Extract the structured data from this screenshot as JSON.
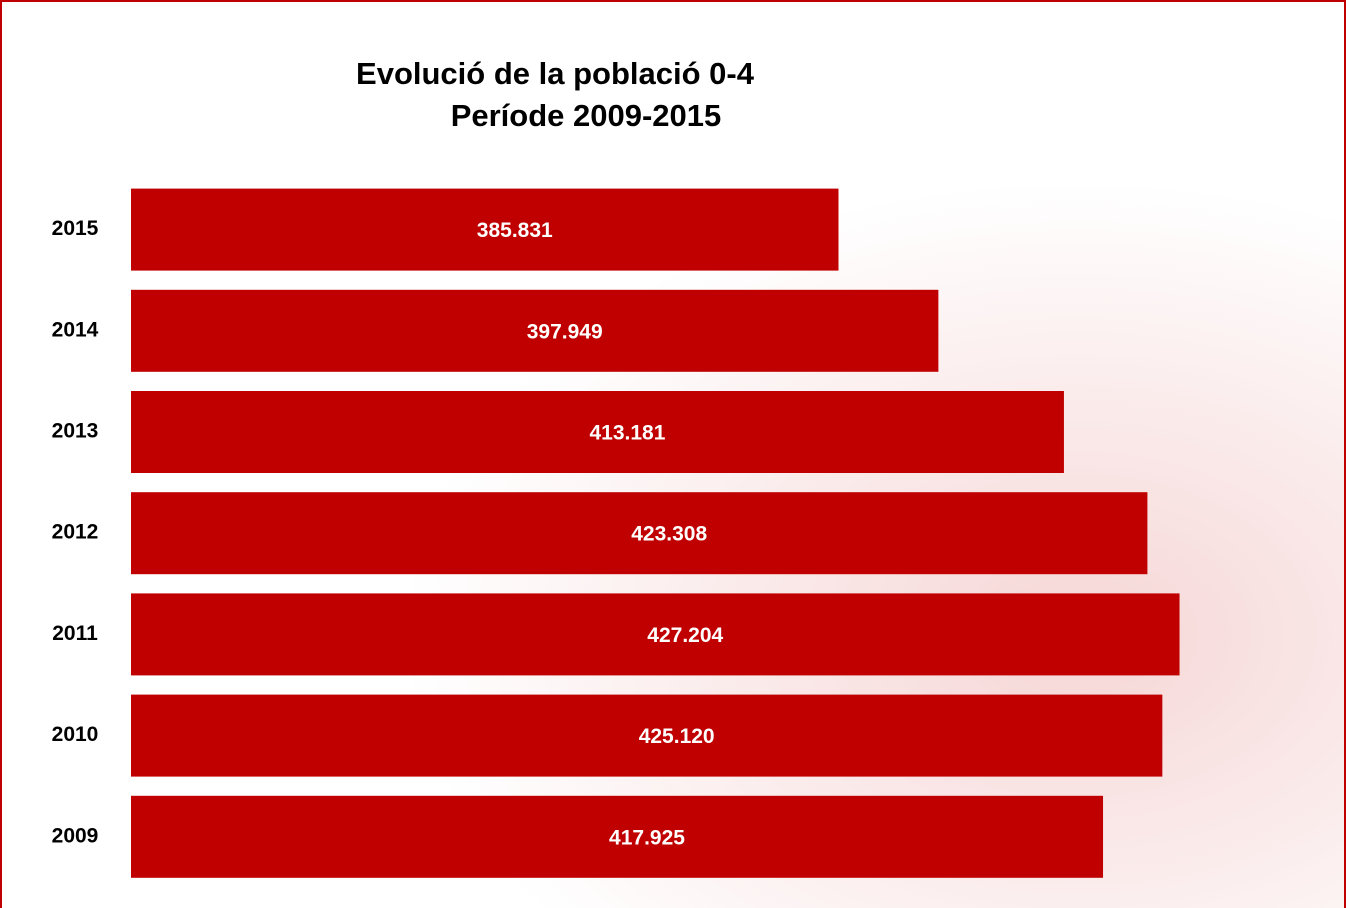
{
  "chart_data": {
    "type": "barh",
    "title": "Evolució de la població 0-4",
    "subtitle": "Període 2009-2015",
    "categories": [
      "2015",
      "2014",
      "2013",
      "2012",
      "2011",
      "2010",
      "2009"
    ],
    "values": [
      385831,
      397949,
      413181,
      423308,
      427204,
      425120,
      417925
    ],
    "value_labels": [
      "385.831",
      "397.949",
      "413.181",
      "423.308",
      "427.204",
      "425.120",
      "417.925"
    ],
    "color": "#c00000",
    "xlim": [
      300000,
      440000
    ]
  }
}
